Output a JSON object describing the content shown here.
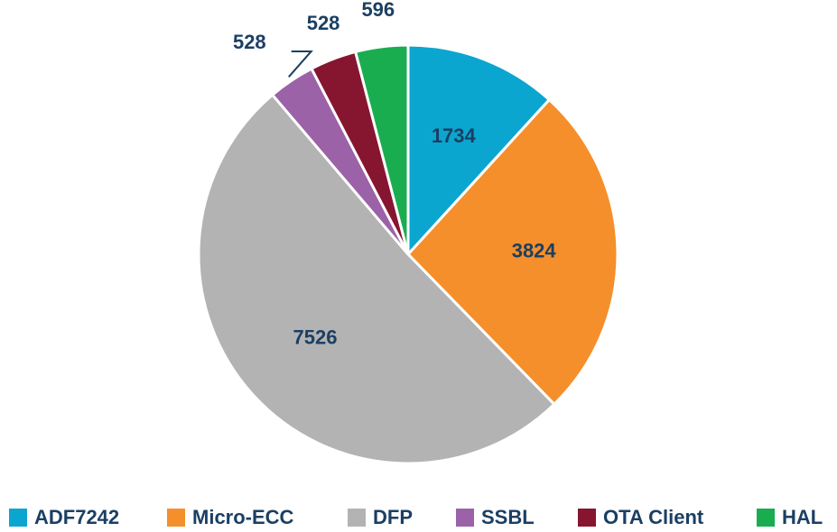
{
  "chart_data": {
    "type": "pie",
    "categories": [
      "ADF7242",
      "Micro-ECC",
      "DFP",
      "SSBL",
      "OTA Client",
      "HAL"
    ],
    "values": [
      1734,
      3824,
      7526,
      528,
      528,
      596
    ],
    "colors": [
      "#0aa6d0",
      "#f58f2b",
      "#b3b3b3",
      "#9b62a8",
      "#861530",
      "#1aad4f"
    ],
    "legend": "bottom"
  }
}
